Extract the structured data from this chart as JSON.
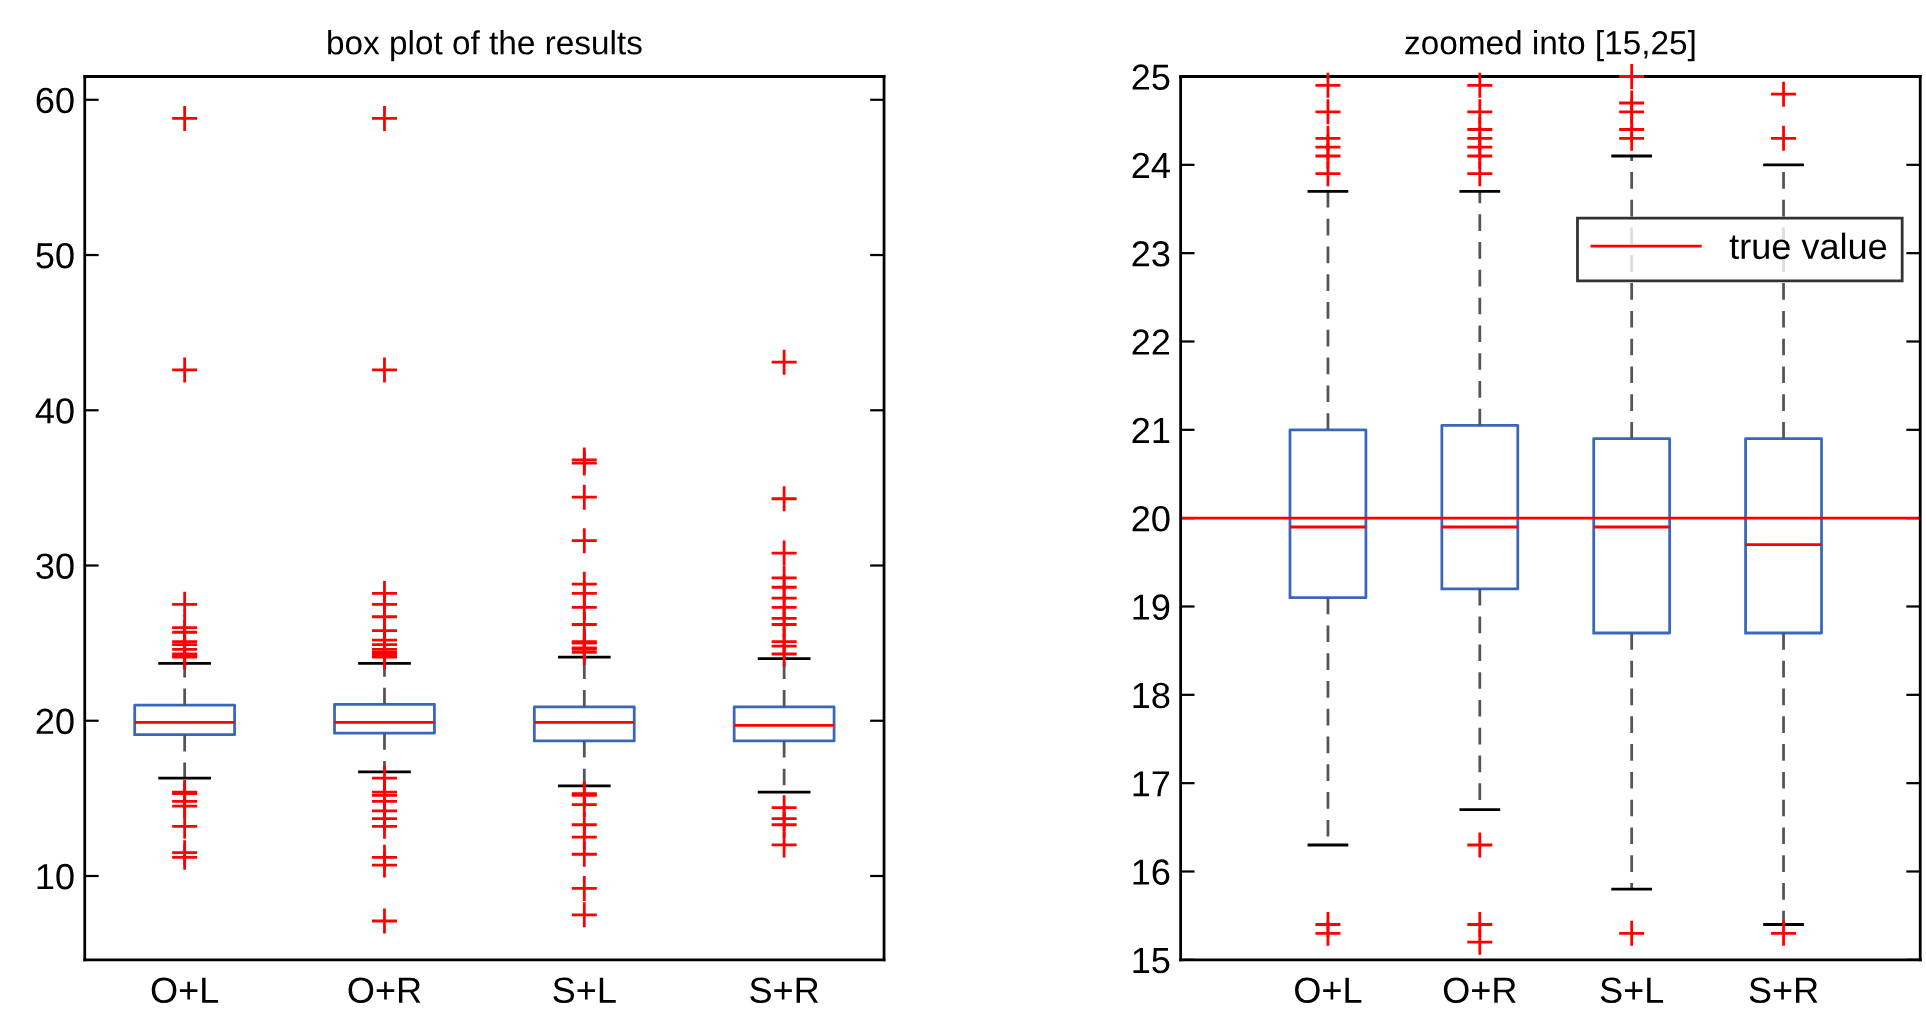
{
  "chart_data": [
    {
      "type": "box",
      "title": "box plot of the results",
      "categories": [
        "O+L",
        "O+R",
        "S+L",
        "S+R"
      ],
      "boxes": [
        {
          "low": 16.3,
          "q1": 19.1,
          "median": 19.9,
          "q3": 21.0,
          "high": 23.7,
          "outliers": [
            58.8,
            42.6,
            27.5,
            26.0,
            25.7,
            25.1,
            24.9,
            24.6,
            24.3,
            24.2,
            24.1,
            15.4,
            15.3,
            14.8,
            14.5,
            13.2,
            11.5,
            11.2
          ]
        },
        {
          "low": 16.7,
          "q1": 19.2,
          "median": 19.9,
          "q3": 21.05,
          "high": 23.7,
          "outliers": [
            58.8,
            42.6,
            28.2,
            27.5,
            26.7,
            25.8,
            25.2,
            24.9,
            24.6,
            24.4,
            24.3,
            24.2,
            24.1,
            16.3,
            15.4,
            15.2,
            14.8,
            14.2,
            13.7,
            13.2,
            11.2,
            10.7,
            7.1
          ]
        },
        {
          "low": 15.8,
          "q1": 18.7,
          "median": 19.9,
          "q3": 20.9,
          "high": 24.1,
          "outliers": [
            36.8,
            36.6,
            34.4,
            31.6,
            28.8,
            28.2,
            27.3,
            26.2,
            25.1,
            25.0,
            24.7,
            24.6,
            24.4,
            15.3,
            15.2,
            14.6,
            13.3,
            12.5,
            11.4,
            9.2,
            7.5
          ]
        },
        {
          "low": 15.4,
          "q1": 18.7,
          "median": 19.7,
          "q3": 20.9,
          "high": 24.0,
          "outliers": [
            43.1,
            34.3,
            30.8,
            29.2,
            28.6,
            27.9,
            27.3,
            26.6,
            26.2,
            25.1,
            24.8,
            24.3,
            14.4,
            13.7,
            13.3,
            12.0
          ]
        }
      ],
      "ylim": [
        4.6,
        61.5
      ],
      "yticks": [
        10,
        20,
        30,
        40,
        50,
        60
      ]
    },
    {
      "type": "box",
      "title": "zoomed into [15,25]",
      "categories": [
        "O+L",
        "O+R",
        "S+L",
        "S+R"
      ],
      "boxes": [
        {
          "low": 16.3,
          "q1": 19.1,
          "median": 19.9,
          "q3": 21.0,
          "high": 23.7,
          "outliers": [
            24.9,
            24.6,
            24.3,
            24.2,
            24.1,
            23.9,
            15.4,
            15.3
          ]
        },
        {
          "low": 16.7,
          "q1": 19.2,
          "median": 19.9,
          "q3": 21.05,
          "high": 23.7,
          "outliers": [
            24.9,
            24.6,
            24.4,
            24.3,
            24.2,
            24.1,
            23.9,
            16.3,
            15.4,
            15.2
          ]
        },
        {
          "low": 15.8,
          "q1": 18.7,
          "median": 19.9,
          "q3": 20.9,
          "high": 24.1,
          "outliers": [
            25.0,
            24.7,
            24.6,
            24.4,
            24.3,
            15.3
          ]
        },
        {
          "low": 15.4,
          "q1": 18.7,
          "median": 19.7,
          "q3": 20.9,
          "high": 24.0,
          "outliers": [
            24.8,
            24.3,
            15.3
          ]
        }
      ],
      "ylim": [
        15,
        25
      ],
      "yticks": [
        15,
        16,
        17,
        18,
        19,
        20,
        21,
        22,
        23,
        24,
        25
      ],
      "ref_lines": [
        {
          "axis": "y",
          "value": 20,
          "label": "true value",
          "color": "#ff0000"
        }
      ],
      "legend": "top right"
    }
  ]
}
